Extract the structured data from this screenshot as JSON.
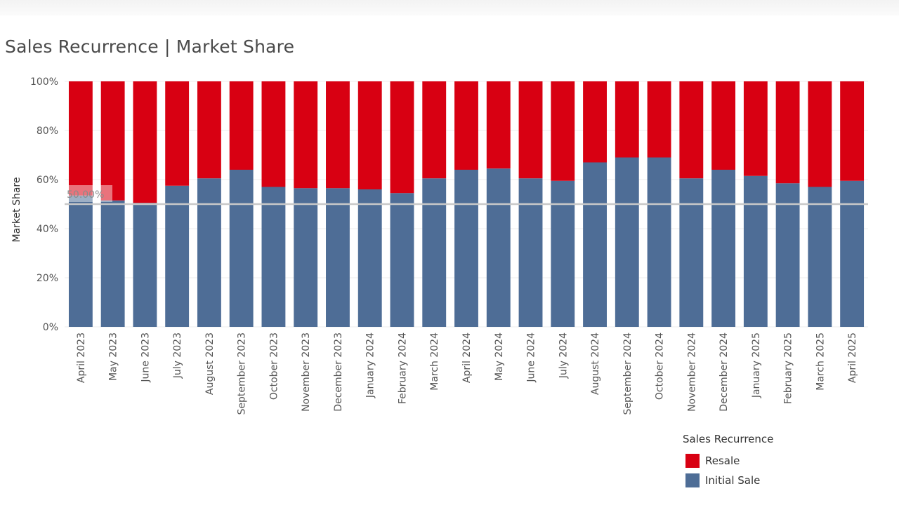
{
  "title": "Sales Recurrence | Market Share",
  "colors": {
    "initial_sale": "#4e6d96",
    "resale": "#d80012",
    "reference_line": "#c8c8c8",
    "grid": "#eeeeee",
    "text": "#555555"
  },
  "legend": {
    "title": "Sales Recurrence",
    "items": [
      {
        "label": "Resale",
        "color": "#d80012"
      },
      {
        "label": "Initial Sale",
        "color": "#4e6d96"
      }
    ]
  },
  "chart_data": {
    "type": "bar",
    "stacked": true,
    "ylabel": "Market Share",
    "xlabel": "",
    "ylim": [
      0,
      100
    ],
    "yticks": [
      "0%",
      "20%",
      "40%",
      "60%",
      "80%",
      "100%"
    ],
    "reference_line": {
      "value": 50,
      "label": "50.00%"
    },
    "categories": [
      "April 2023",
      "May 2023",
      "June 2023",
      "July 2023",
      "August 2023",
      "September 2023",
      "October 2023",
      "November 2023",
      "December 2023",
      "January 2024",
      "February 2024",
      "March 2024",
      "April 2024",
      "May 2024",
      "June 2024",
      "July 2024",
      "August 2024",
      "September 2024",
      "October 2024",
      "November 2024",
      "December 2024",
      "January 2025",
      "February 2025",
      "March 2025",
      "April 2025"
    ],
    "series": [
      {
        "name": "Initial Sale",
        "values": [
          53.5,
          51.5,
          50.5,
          57.5,
          60.5,
          64,
          57,
          56.5,
          56.5,
          56,
          54.5,
          60.5,
          64,
          64.5,
          60.5,
          59.5,
          67,
          69,
          69,
          60.5,
          64,
          61.5,
          58.5,
          57,
          59.5
        ]
      },
      {
        "name": "Resale",
        "values": [
          46.5,
          48.5,
          49.5,
          42.5,
          39.5,
          36,
          43,
          43.5,
          43.5,
          44,
          45.5,
          39.5,
          36,
          35.5,
          39.5,
          40.5,
          33,
          31,
          31,
          39.5,
          36,
          38.5,
          41.5,
          43,
          40.5
        ]
      }
    ]
  }
}
